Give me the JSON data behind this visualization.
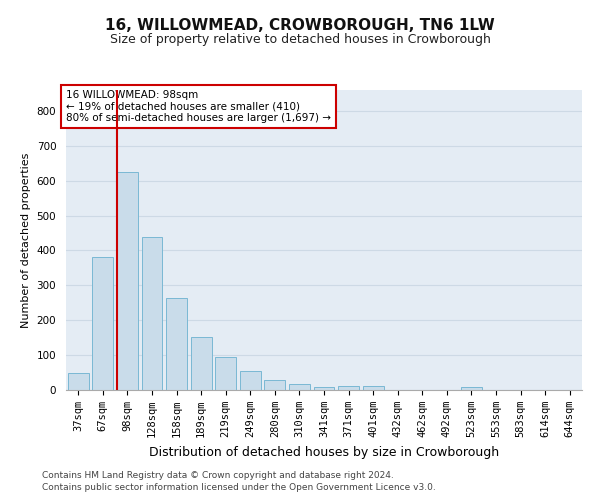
{
  "title": "16, WILLOWMEAD, CROWBOROUGH, TN6 1LW",
  "subtitle": "Size of property relative to detached houses in Crowborough",
  "xlabel": "Distribution of detached houses by size in Crowborough",
  "ylabel": "Number of detached properties",
  "footer1": "Contains HM Land Registry data © Crown copyright and database right 2024.",
  "footer2": "Contains public sector information licensed under the Open Government Licence v3.0.",
  "bar_labels": [
    "37sqm",
    "67sqm",
    "98sqm",
    "128sqm",
    "158sqm",
    "189sqm",
    "219sqm",
    "249sqm",
    "280sqm",
    "310sqm",
    "341sqm",
    "371sqm",
    "401sqm",
    "432sqm",
    "462sqm",
    "492sqm",
    "523sqm",
    "553sqm",
    "583sqm",
    "614sqm",
    "644sqm"
  ],
  "bar_values": [
    48,
    380,
    625,
    438,
    265,
    153,
    95,
    55,
    28,
    18,
    10,
    12,
    11,
    0,
    0,
    0,
    8,
    0,
    0,
    0,
    0
  ],
  "bar_color": "#c9dcea",
  "bar_edge_color": "#7ab8d4",
  "red_line_index": 2,
  "ylim": [
    0,
    860
  ],
  "yticks": [
    0,
    100,
    200,
    300,
    400,
    500,
    600,
    700,
    800
  ],
  "annotation_text": "16 WILLOWMEAD: 98sqm\n← 19% of detached houses are smaller (410)\n80% of semi-detached houses are larger (1,697) →",
  "annotation_box_facecolor": "#ffffff",
  "annotation_box_edgecolor": "#cc0000",
  "grid_color": "#cdd9e5",
  "background_color": "#e4ecf4",
  "title_fontsize": 11,
  "subtitle_fontsize": 9,
  "ylabel_fontsize": 8,
  "xlabel_fontsize": 9,
  "tick_fontsize": 7.5,
  "footer_fontsize": 6.5
}
